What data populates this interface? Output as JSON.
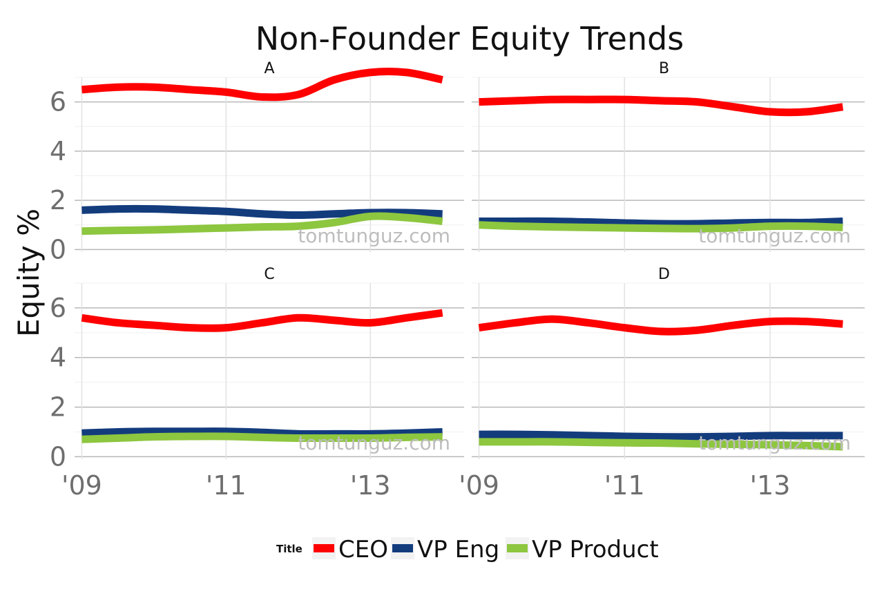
{
  "chart_data": {
    "type": "line",
    "title": "Non-Founder Equity Trends",
    "ylabel": "Equity %",
    "xlabel": "",
    "x_tick_labels": [
      "'09",
      "'11",
      "'13"
    ],
    "x_ticks": [
      2009,
      2011,
      2013
    ],
    "xlim": [
      2008.9,
      2014.3
    ],
    "y_tick_labels": [
      "0",
      "2",
      "4",
      "6"
    ],
    "y_ticks": [
      0,
      2,
      4,
      6
    ],
    "ylim": [
      -0.1,
      7.0
    ],
    "grid": true,
    "watermark": "tomtunguz.com",
    "legend": {
      "title": "Title",
      "position": "bottom",
      "entries": [
        "CEO",
        "VP Eng",
        "VP Product"
      ]
    },
    "series_colors": {
      "CEO": "#ff0000",
      "VP Eng": "#133c7d",
      "VP Product": "#8dc63f"
    },
    "x": [
      2009,
      2009.5,
      2010,
      2010.5,
      2011,
      2011.5,
      2012,
      2012.5,
      2013,
      2013.5,
      2014
    ],
    "facets": [
      {
        "label": "A",
        "series": [
          {
            "name": "CEO",
            "values": [
              6.5,
              6.6,
              6.6,
              6.5,
              6.4,
              6.2,
              6.3,
              6.9,
              7.2,
              7.2,
              6.9
            ]
          },
          {
            "name": "VP Eng",
            "values": [
              1.6,
              1.65,
              1.65,
              1.6,
              1.55,
              1.45,
              1.4,
              1.45,
              1.5,
              1.5,
              1.45
            ]
          },
          {
            "name": "VP Product",
            "values": [
              0.75,
              0.78,
              0.8,
              0.84,
              0.88,
              0.92,
              0.95,
              1.1,
              1.35,
              1.3,
              1.15
            ]
          }
        ]
      },
      {
        "label": "B",
        "series": [
          {
            "name": "CEO",
            "values": [
              6.0,
              6.05,
              6.1,
              6.1,
              6.1,
              6.05,
              6.0,
              5.8,
              5.6,
              5.6,
              5.8
            ]
          },
          {
            "name": "VP Eng",
            "values": [
              1.15,
              1.15,
              1.15,
              1.12,
              1.08,
              1.05,
              1.05,
              1.08,
              1.1,
              1.1,
              1.15
            ]
          },
          {
            "name": "VP Product",
            "values": [
              1.0,
              0.95,
              0.92,
              0.9,
              0.88,
              0.86,
              0.85,
              0.88,
              0.95,
              0.95,
              0.9
            ]
          }
        ]
      },
      {
        "label": "C",
        "series": [
          {
            "name": "CEO",
            "values": [
              5.6,
              5.4,
              5.3,
              5.2,
              5.2,
              5.4,
              5.6,
              5.5,
              5.4,
              5.6,
              5.8
            ]
          },
          {
            "name": "VP Eng",
            "values": [
              0.95,
              1.0,
              1.02,
              1.02,
              1.02,
              0.98,
              0.92,
              0.92,
              0.92,
              0.95,
              1.0
            ]
          },
          {
            "name": "VP Product",
            "values": [
              0.7,
              0.75,
              0.8,
              0.82,
              0.82,
              0.78,
              0.75,
              0.75,
              0.75,
              0.78,
              0.8
            ]
          }
        ]
      },
      {
        "label": "D",
        "series": [
          {
            "name": "CEO",
            "values": [
              5.2,
              5.4,
              5.55,
              5.4,
              5.2,
              5.05,
              5.1,
              5.3,
              5.45,
              5.45,
              5.35
            ]
          },
          {
            "name": "VP Eng",
            "values": [
              0.9,
              0.9,
              0.88,
              0.85,
              0.82,
              0.8,
              0.8,
              0.82,
              0.85,
              0.85,
              0.85
            ]
          },
          {
            "name": "VP Product",
            "values": [
              0.6,
              0.6,
              0.6,
              0.58,
              0.56,
              0.55,
              0.52,
              0.5,
              0.48,
              0.45,
              0.4
            ]
          }
        ]
      }
    ]
  }
}
